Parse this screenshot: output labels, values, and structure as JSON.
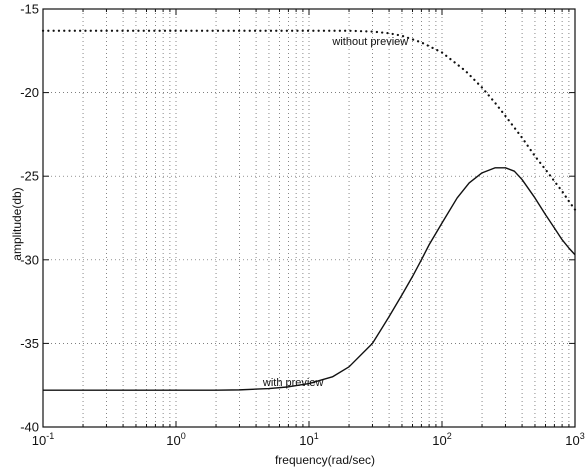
{
  "chart_data": {
    "type": "line",
    "title": "",
    "xlabel": "frequency(rad/sec)",
    "ylabel": "amplitude(db)",
    "x_scale": "log",
    "xlim": [
      0.1,
      1000
    ],
    "ylim": [
      -40,
      -15
    ],
    "x_ticks": [
      {
        "value": 0.1,
        "base": "10",
        "exp": "-1"
      },
      {
        "value": 1,
        "base": "10",
        "exp": "0"
      },
      {
        "value": 10,
        "base": "10",
        "exp": "1"
      },
      {
        "value": 100,
        "base": "10",
        "exp": "2"
      },
      {
        "value": 1000,
        "base": "10",
        "exp": "3"
      }
    ],
    "y_ticks": [
      {
        "value": -15,
        "label": "-15"
      },
      {
        "value": -20,
        "label": "-20"
      },
      {
        "value": -25,
        "label": "-25"
      },
      {
        "value": -30,
        "label": "-30"
      },
      {
        "value": -35,
        "label": "-35"
      },
      {
        "value": -40,
        "label": "-40"
      }
    ],
    "grid": true,
    "series": [
      {
        "style": "dotted",
        "color": "#111111",
        "points": [
          [
            0.1,
            -16.3
          ],
          [
            0.2,
            -16.3
          ],
          [
            0.5,
            -16.3
          ],
          [
            1,
            -16.3
          ],
          [
            2,
            -16.3
          ],
          [
            5,
            -16.3
          ],
          [
            10,
            -16.3
          ],
          [
            20,
            -16.3
          ],
          [
            30,
            -16.35
          ],
          [
            40,
            -16.45
          ],
          [
            50,
            -16.6
          ],
          [
            70,
            -17.0
          ],
          [
            100,
            -17.6
          ],
          [
            150,
            -18.7
          ],
          [
            200,
            -19.7
          ],
          [
            250,
            -20.6
          ],
          [
            300,
            -21.4
          ],
          [
            400,
            -22.7
          ],
          [
            500,
            -23.8
          ],
          [
            600,
            -24.6
          ],
          [
            700,
            -25.3
          ],
          [
            800,
            -25.9
          ],
          [
            900,
            -26.5
          ],
          [
            1000,
            -27.0
          ]
        ]
      },
      {
        "style": "solid",
        "color": "#111111",
        "points": [
          [
            0.1,
            -37.8
          ],
          [
            0.2,
            -37.8
          ],
          [
            0.5,
            -37.8
          ],
          [
            1,
            -37.8
          ],
          [
            2,
            -37.8
          ],
          [
            3,
            -37.78
          ],
          [
            5,
            -37.7
          ],
          [
            7,
            -37.6
          ],
          [
            10,
            -37.4
          ],
          [
            15,
            -37.0
          ],
          [
            20,
            -36.4
          ],
          [
            30,
            -35.0
          ],
          [
            40,
            -33.4
          ],
          [
            50,
            -32.1
          ],
          [
            60,
            -31.0
          ],
          [
            70,
            -30.0
          ],
          [
            80,
            -29.1
          ],
          [
            100,
            -27.8
          ],
          [
            130,
            -26.3
          ],
          [
            160,
            -25.4
          ],
          [
            200,
            -24.8
          ],
          [
            250,
            -24.5
          ],
          [
            300,
            -24.5
          ],
          [
            350,
            -24.7
          ],
          [
            400,
            -25.2
          ],
          [
            500,
            -26.3
          ],
          [
            600,
            -27.3
          ],
          [
            700,
            -28.1
          ],
          [
            800,
            -28.8
          ],
          [
            900,
            -29.3
          ],
          [
            1000,
            -29.7
          ]
        ]
      }
    ],
    "annotations": [
      {
        "text": "without preview",
        "x": 15,
        "y": -16.9
      },
      {
        "text": "with preview",
        "x": 4.5,
        "y": -37.3
      }
    ]
  }
}
